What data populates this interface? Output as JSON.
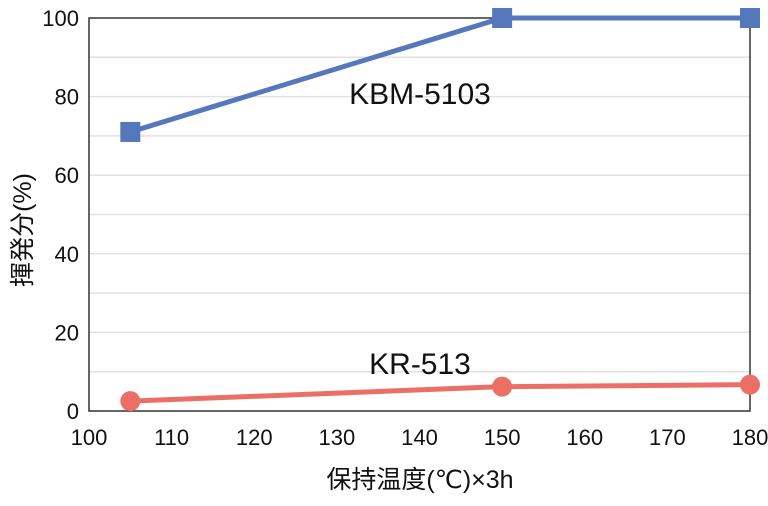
{
  "chart_data": {
    "type": "line",
    "title": "",
    "xlabel": "保持温度(℃)×3h",
    "ylabel": "揮発分(%)",
    "xlim": [
      100,
      180
    ],
    "ylim": [
      0,
      100
    ],
    "xticks": [
      100,
      110,
      120,
      130,
      140,
      150,
      160,
      170,
      180
    ],
    "yticks": [
      0,
      20,
      40,
      60,
      80,
      100
    ],
    "grid": "horizontal every 10",
    "series": [
      {
        "name": "KBM-5103",
        "color": "#5577bb",
        "marker": "square",
        "x": [
          105,
          150,
          180
        ],
        "y": [
          71,
          100,
          100
        ]
      },
      {
        "name": "KR-513",
        "color": "#ec6f66",
        "marker": "circle",
        "x": [
          105,
          150,
          180
        ],
        "y": [
          2.5,
          6.2,
          6.7
        ]
      }
    ]
  }
}
